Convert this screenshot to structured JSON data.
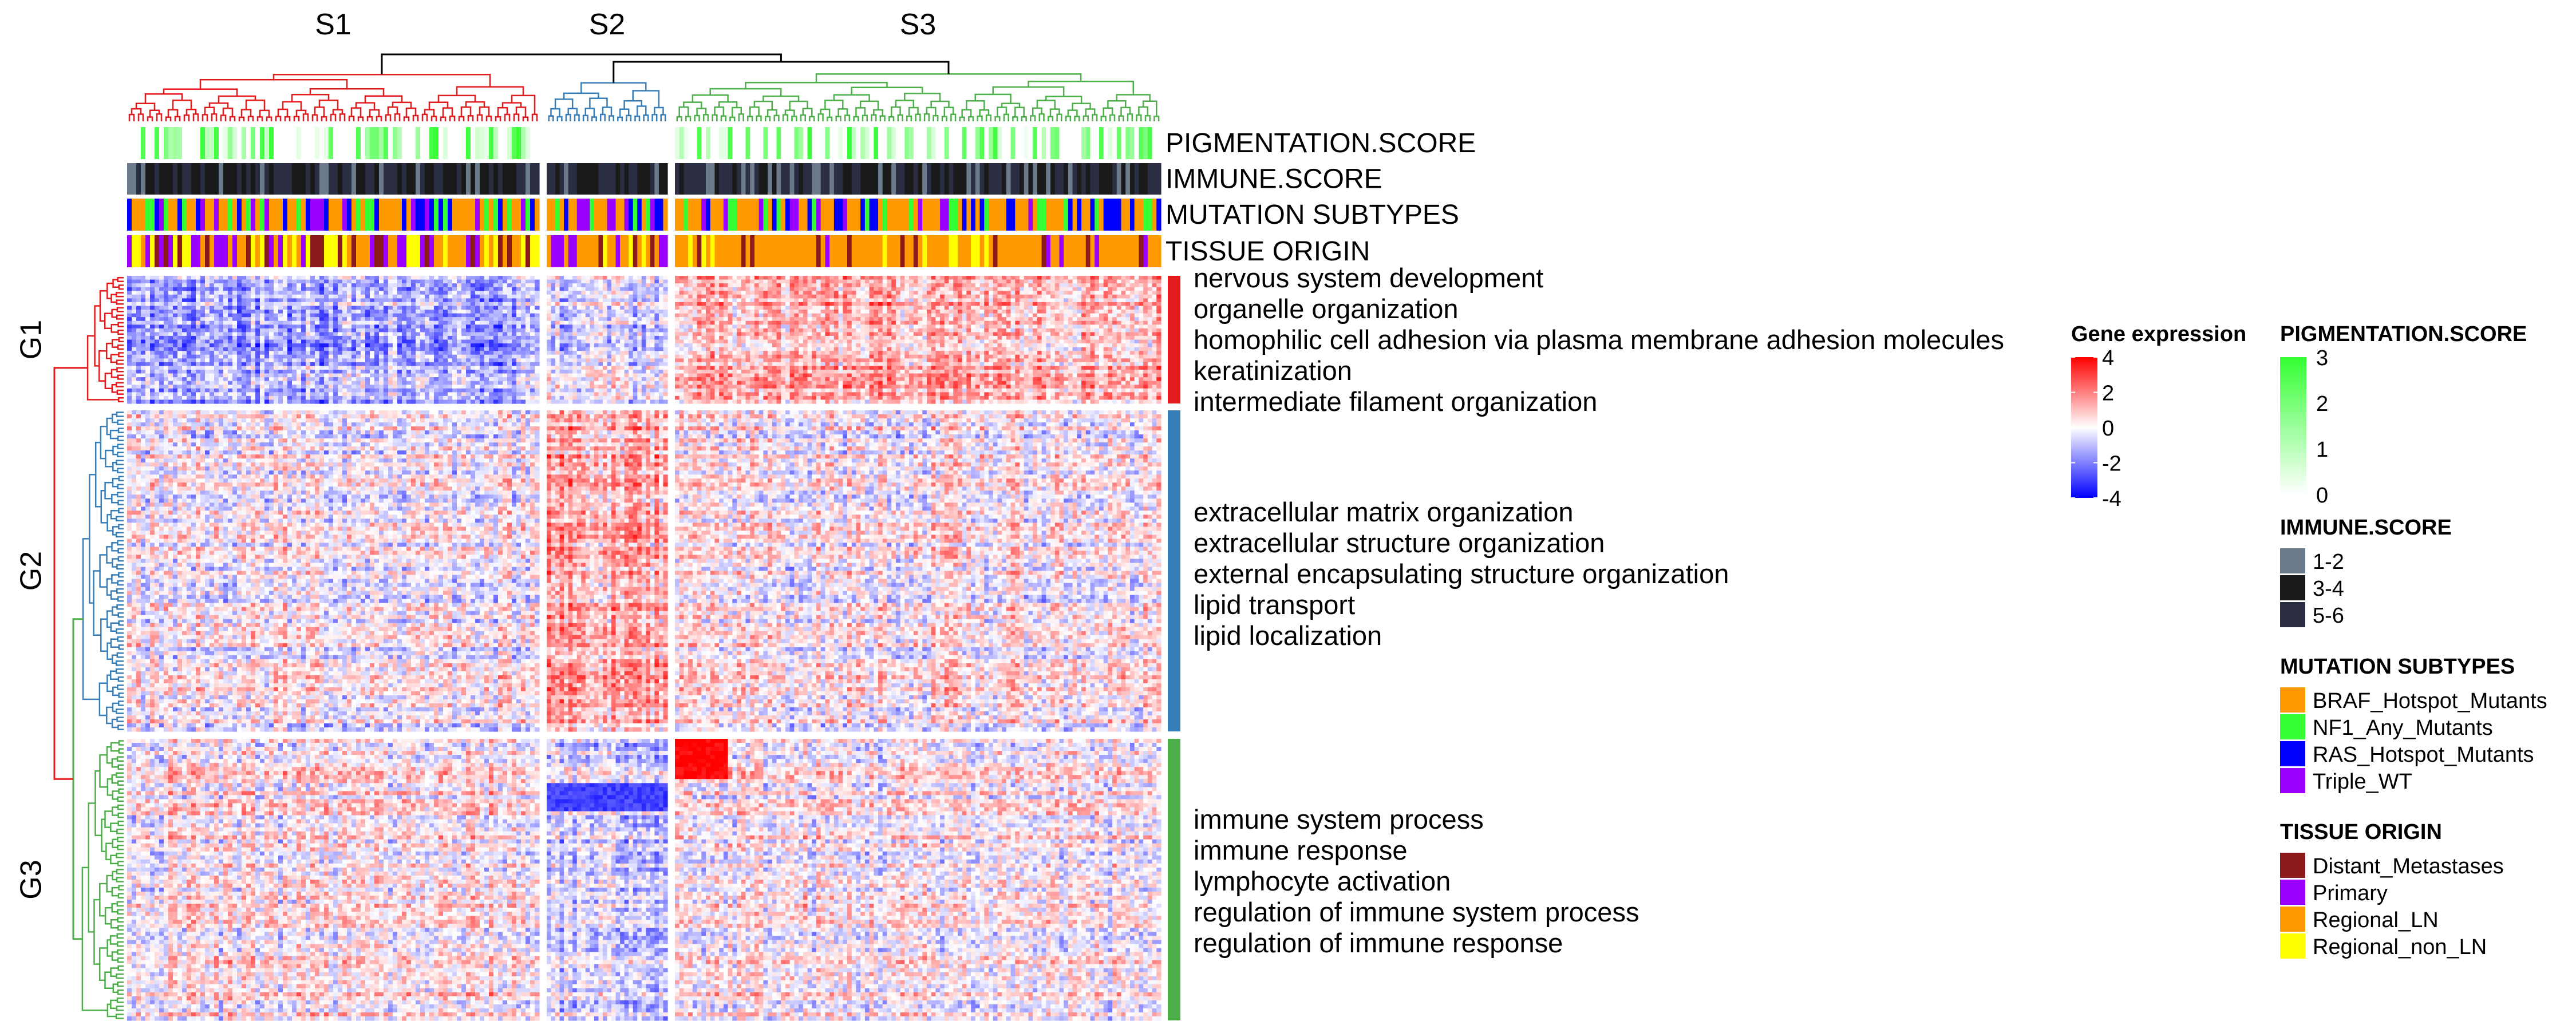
{
  "chart_data": {
    "type": "heatmap",
    "title": "",
    "sample_clusters": [
      "S1",
      "S2",
      "S3"
    ],
    "gene_clusters": [
      {
        "name": "G1",
        "color": "#e41a1c",
        "terms": [
          "nervous system development",
          "organelle organization",
          "homophilic cell adhesion via plasma membrane adhesion molecules",
          "keratinization",
          "intermediate filament organization"
        ]
      },
      {
        "name": "G2",
        "color": "#377eb8",
        "terms": [
          "extracellular matrix organization",
          "extracellular structure organization",
          "external encapsulating structure organization",
          "lipid transport",
          "lipid localization"
        ]
      },
      {
        "name": "G3",
        "color": "#4daf4a",
        "terms": [
          "immune system process",
          "immune response",
          "lymphocyte activation",
          "regulation of immune system process",
          "regulation of immune response"
        ]
      }
    ],
    "cluster_colors": {
      "S1": "#e41a1c",
      "S2": "#377eb8",
      "S3": "#4daf4a"
    },
    "annotation_tracks": [
      "PIGMENTATION.SCORE",
      "IMMUNE.SCORE",
      "MUTATION SUBTYPES",
      "TISSUE ORIGIN"
    ],
    "color_scale": {
      "title": "Gene expression",
      "ticks": [
        "4",
        "2",
        "0",
        "-2",
        "-4"
      ],
      "range": [
        -4,
        4
      ],
      "colors": [
        "#0000ff",
        "#ffffff",
        "#ff0000"
      ]
    },
    "legends": {
      "pigmentation": {
        "title": "PIGMENTATION.SCORE",
        "ticks": [
          "3",
          "2",
          "1",
          "0"
        ],
        "range": [
          0,
          3
        ],
        "colors": [
          "#ffffff",
          "#33ff33"
        ]
      },
      "immune": {
        "title": "IMMUNE.SCORE",
        "items": [
          {
            "label": "1-2",
            "color": "#6b7b8c"
          },
          {
            "label": "3-4",
            "color": "#1a1a1a"
          },
          {
            "label": "5-6",
            "color": "#2b2d42"
          }
        ]
      },
      "mutation": {
        "title": "MUTATION SUBTYPES",
        "items": [
          {
            "label": "BRAF_Hotspot_Mutants",
            "color": "#ff9900"
          },
          {
            "label": "NF1_Any_Mutants",
            "color": "#33ff33"
          },
          {
            "label": "RAS_Hotspot_Mutants",
            "color": "#0000ff"
          },
          {
            "label": "Triple_WT",
            "color": "#9900ff"
          }
        ]
      },
      "tissue": {
        "title": "TISSUE ORIGIN",
        "items": [
          {
            "label": "Distant_Metastases",
            "color": "#8b1a1a"
          },
          {
            "label": "Primary",
            "color": "#9900ff"
          },
          {
            "label": "Regional_LN",
            "color": "#ff9900"
          },
          {
            "label": "Regional_non_LN",
            "color": "#ffff00"
          }
        ]
      }
    }
  }
}
